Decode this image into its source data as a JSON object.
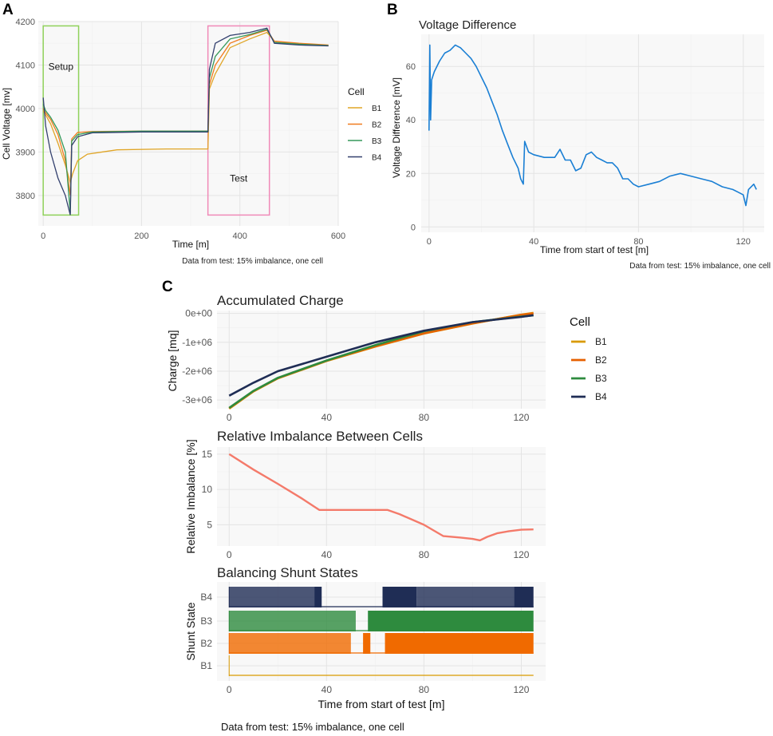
{
  "chart_data": [
    {
      "panel": "A",
      "type": "line",
      "title": "",
      "xlabel": "Time [m]",
      "ylabel": "Cell Voltage [mv]",
      "xlim": [
        -10,
        600
      ],
      "ylim": [
        3730,
        4200
      ],
      "xticks": [
        0,
        200,
        400,
        600
      ],
      "yticks": [
        3800,
        3900,
        4000,
        4100,
        4200
      ],
      "legend_title": "Cell",
      "legend": [
        "B1",
        "B2",
        "B3",
        "B4"
      ],
      "colors": {
        "B1": "#e0a526",
        "B2": "#f07c1f",
        "B3": "#35995a",
        "B4": "#33406e"
      },
      "annotations": [
        {
          "label": "Setup",
          "x_range": [
            0,
            72
          ],
          "y_range": [
            3755,
            4190
          ],
          "color": "#8fd15a"
        },
        {
          "label": "Test",
          "x_range": [
            335,
            460
          ],
          "y_range": [
            3755,
            4190
          ],
          "color": "#f08ab8"
        }
      ],
      "caption": "Data from test: 15% imbalance, one cell",
      "series": [
        {
          "name": "B1",
          "points": [
            [
              0,
              3995
            ],
            [
              5,
              3985
            ],
            [
              15,
              3965
            ],
            [
              30,
              3920
            ],
            [
              45,
              3870
            ],
            [
              55,
              3830
            ],
            [
              60,
              3850
            ],
            [
              70,
              3880
            ],
            [
              90,
              3895
            ],
            [
              150,
              3905
            ],
            [
              250,
              3907
            ],
            [
              335,
              3907
            ],
            [
              338,
              4045
            ],
            [
              350,
              4080
            ],
            [
              380,
              4140
            ],
            [
              420,
              4160
            ],
            [
              455,
              4175
            ],
            [
              470,
              4155
            ],
            [
              520,
              4148
            ],
            [
              580,
              4145
            ]
          ]
        },
        {
          "name": "B2",
          "points": [
            [
              0,
              4000
            ],
            [
              5,
              3990
            ],
            [
              15,
              3975
            ],
            [
              30,
              3940
            ],
            [
              45,
              3880
            ],
            [
              55,
              3800
            ],
            [
              58,
              3930
            ],
            [
              70,
              3945
            ],
            [
              100,
              3947
            ],
            [
              200,
              3948
            ],
            [
              335,
              3948
            ],
            [
              338,
              4055
            ],
            [
              350,
              4100
            ],
            [
              380,
              4150
            ],
            [
              420,
              4168
            ],
            [
              455,
              4180
            ],
            [
              470,
              4155
            ],
            [
              520,
              4150
            ],
            [
              580,
              4146
            ]
          ]
        },
        {
          "name": "B3",
          "points": [
            [
              0,
              4010
            ],
            [
              5,
              3995
            ],
            [
              15,
              3980
            ],
            [
              30,
              3950
            ],
            [
              45,
              3900
            ],
            [
              55,
              3760
            ],
            [
              58,
              3925
            ],
            [
              70,
              3940
            ],
            [
              100,
              3946
            ],
            [
              200,
              3948
            ],
            [
              335,
              3948
            ],
            [
              338,
              4070
            ],
            [
              350,
              4120
            ],
            [
              380,
              4160
            ],
            [
              420,
              4170
            ],
            [
              455,
              4182
            ],
            [
              470,
              4152
            ],
            [
              520,
              4148
            ],
            [
              580,
              4145
            ]
          ]
        },
        {
          "name": "B4",
          "points": [
            [
              0,
              4025
            ],
            [
              5,
              3960
            ],
            [
              15,
              3900
            ],
            [
              30,
              3840
            ],
            [
              45,
              3800
            ],
            [
              55,
              3755
            ],
            [
              58,
              3915
            ],
            [
              70,
              3935
            ],
            [
              100,
              3944
            ],
            [
              200,
              3946
            ],
            [
              335,
              3946
            ],
            [
              338,
              4090
            ],
            [
              350,
              4150
            ],
            [
              380,
              4168
            ],
            [
              420,
              4175
            ],
            [
              455,
              4185
            ],
            [
              470,
              4150
            ],
            [
              520,
              4146
            ],
            [
              580,
              4144
            ]
          ]
        }
      ]
    },
    {
      "panel": "B",
      "type": "line",
      "title": "Voltage Difference",
      "xlabel": "Time from start of test [m]",
      "ylabel": "Voltage Difference [mV]",
      "xlim": [
        -3,
        128
      ],
      "ylim": [
        -2,
        72
      ],
      "xticks": [
        0,
        40,
        80,
        120
      ],
      "yticks": [
        0,
        20,
        40,
        60
      ],
      "color": "#1a7fd4",
      "caption": "Data from test: 15% imbalance, one cell",
      "series": [
        {
          "name": "Voltage Difference",
          "points": [
            [
              0,
              36
            ],
            [
              0.3,
              68
            ],
            [
              0.6,
              40
            ],
            [
              1,
              55
            ],
            [
              2,
              58
            ],
            [
              4,
              62
            ],
            [
              6,
              65
            ],
            [
              8,
              66
            ],
            [
              10,
              68
            ],
            [
              12,
              67
            ],
            [
              14,
              65
            ],
            [
              16,
              63
            ],
            [
              18,
              60
            ],
            [
              20,
              56
            ],
            [
              22,
              52
            ],
            [
              24,
              47
            ],
            [
              26,
              42
            ],
            [
              28,
              36
            ],
            [
              30,
              31
            ],
            [
              32,
              26
            ],
            [
              34,
              22
            ],
            [
              35,
              18
            ],
            [
              36,
              16
            ],
            [
              36.5,
              32
            ],
            [
              38,
              28
            ],
            [
              40,
              27
            ],
            [
              44,
              26
            ],
            [
              48,
              26
            ],
            [
              50,
              29
            ],
            [
              52,
              25
            ],
            [
              54,
              25
            ],
            [
              56,
              21
            ],
            [
              58,
              22
            ],
            [
              60,
              27
            ],
            [
              62,
              28
            ],
            [
              64,
              26
            ],
            [
              66,
              25
            ],
            [
              68,
              24
            ],
            [
              70,
              24
            ],
            [
              72,
              22
            ],
            [
              74,
              18
            ],
            [
              76,
              18
            ],
            [
              78,
              16
            ],
            [
              80,
              15
            ],
            [
              84,
              16
            ],
            [
              88,
              17
            ],
            [
              92,
              19
            ],
            [
              96,
              20
            ],
            [
              100,
              19
            ],
            [
              104,
              18
            ],
            [
              108,
              17
            ],
            [
              112,
              15
            ],
            [
              116,
              14
            ],
            [
              118,
              13
            ],
            [
              120,
              12
            ],
            [
              121,
              8
            ],
            [
              122,
              14
            ],
            [
              124,
              16
            ],
            [
              125,
              14
            ]
          ]
        }
      ]
    },
    {
      "panel": "C1",
      "type": "line",
      "title": "Accumulated Charge",
      "xlabel": "",
      "ylabel": "Charge [mq]",
      "xlim": [
        -5,
        130
      ],
      "ylim": [
        -3300000,
        100000
      ],
      "xticks": [
        0,
        40,
        80,
        120
      ],
      "ytick_values": [
        0,
        -1000000,
        -2000000,
        -3000000
      ],
      "ytick_labels": [
        "0e+00",
        "-1e+06",
        "-2e+06",
        "-3e+06"
      ],
      "legend_title": "Cell",
      "legend": [
        "B1",
        "B2",
        "B3",
        "B4"
      ],
      "colors": {
        "B1": "#d99a00",
        "B2": "#e66000",
        "B3": "#2e8b3e",
        "B4": "#1f2d55"
      },
      "series": [
        {
          "name": "B1",
          "points": [
            [
              0,
              -3300000
            ],
            [
              10,
              -2700000
            ],
            [
              20,
              -2250000
            ],
            [
              40,
              -1650000
            ],
            [
              60,
              -1150000
            ],
            [
              80,
              -700000
            ],
            [
              100,
              -350000
            ],
            [
              120,
              -40000
            ],
            [
              125,
              20000
            ]
          ]
        },
        {
          "name": "B2",
          "points": [
            [
              0,
              -3280000
            ],
            [
              10,
              -2690000
            ],
            [
              20,
              -2240000
            ],
            [
              40,
              -1640000
            ],
            [
              60,
              -1140000
            ],
            [
              80,
              -690000
            ],
            [
              100,
              -345000
            ],
            [
              120,
              -50000
            ],
            [
              125,
              0
            ]
          ]
        },
        {
          "name": "B3",
          "points": [
            [
              0,
              -3270000
            ],
            [
              10,
              -2680000
            ],
            [
              20,
              -2230000
            ],
            [
              40,
              -1630000
            ],
            [
              60,
              -1100000
            ],
            [
              80,
              -620000
            ],
            [
              100,
              -300000
            ],
            [
              120,
              -110000
            ],
            [
              125,
              -70000
            ]
          ]
        },
        {
          "name": "B4",
          "points": [
            [
              0,
              -2850000
            ],
            [
              10,
              -2400000
            ],
            [
              20,
              -2000000
            ],
            [
              40,
              -1500000
            ],
            [
              60,
              -1000000
            ],
            [
              80,
              -600000
            ],
            [
              100,
              -300000
            ],
            [
              120,
              -120000
            ],
            [
              125,
              -60000
            ]
          ]
        }
      ]
    },
    {
      "panel": "C2",
      "type": "line",
      "title": "Relative Imbalance Between Cells",
      "xlabel": "",
      "ylabel": "Relative Imbalance [%]",
      "xlim": [
        -5,
        130
      ],
      "ylim": [
        2,
        16
      ],
      "xticks": [
        0,
        40,
        80,
        120
      ],
      "yticks": [
        5,
        10,
        15
      ],
      "color": "#f47a6a",
      "series": [
        {
          "name": "Relative Imbalance",
          "points": [
            [
              0,
              15
            ],
            [
              10,
              12.8
            ],
            [
              20,
              10.8
            ],
            [
              30,
              8.7
            ],
            [
              37,
              7.1
            ],
            [
              45,
              7.1
            ],
            [
              55,
              7.1
            ],
            [
              65,
              7.1
            ],
            [
              70,
              6.5
            ],
            [
              80,
              5
            ],
            [
              88,
              3.4
            ],
            [
              95,
              3.2
            ],
            [
              100,
              3.0
            ],
            [
              103,
              2.8
            ],
            [
              106,
              3.3
            ],
            [
              110,
              3.8
            ],
            [
              115,
              4.1
            ],
            [
              120,
              4.3
            ],
            [
              125,
              4.35
            ]
          ]
        }
      ]
    },
    {
      "panel": "C3",
      "type": "bar",
      "title": "Balancing Shunt States",
      "xlabel": "Time from start of test [m]",
      "ylabel": "Shunt State",
      "xlim": [
        -5,
        130
      ],
      "xticks": [
        0,
        40,
        80,
        120
      ],
      "categories": [
        "B1",
        "B2",
        "B3",
        "B4"
      ],
      "colors": {
        "B1": "#d99a00",
        "B2": "#f06a00",
        "B3": "#2e8b3e",
        "B4": "#1f2d55"
      },
      "series": [
        {
          "name": "B4",
          "on_intervals": [
            [
              0,
              35,
              "light"
            ],
            [
              35,
              38,
              "dark"
            ],
            [
              63,
              77,
              "dark"
            ],
            [
              77,
              117,
              "light"
            ],
            [
              117,
              125,
              "dark"
            ]
          ]
        },
        {
          "name": "B3",
          "on_intervals": [
            [
              0,
              52,
              "light"
            ],
            [
              57,
              125,
              "dark"
            ]
          ]
        },
        {
          "name": "B2",
          "on_intervals": [
            [
              0,
              50,
              "light"
            ],
            [
              55,
              58,
              "dark"
            ],
            [
              64,
              125,
              "dark"
            ]
          ]
        },
        {
          "name": "B1",
          "on_intervals": []
        }
      ],
      "caption": "Data from test: 15% imbalance, one cell"
    }
  ],
  "labels": {
    "panel_a": "A",
    "panel_b": "B",
    "panel_c": "C"
  }
}
